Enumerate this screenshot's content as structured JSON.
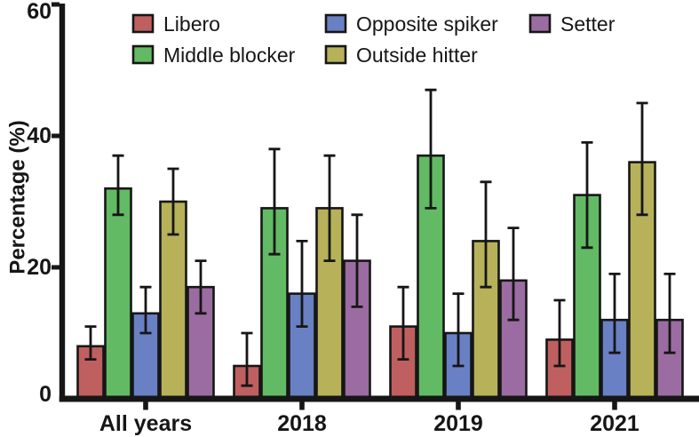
{
  "chart_data": {
    "type": "bar",
    "title": "",
    "xlabel": "",
    "ylabel": "Percentage (%)",
    "ylim": [
      0,
      60
    ],
    "yticks": [
      0,
      20,
      40,
      60
    ],
    "grid": false,
    "legend_position": "top",
    "categories": [
      "All years",
      "2018",
      "2019",
      "2021"
    ],
    "series": [
      {
        "name": "Libero",
        "color": "#c05f5f",
        "values": [
          8,
          5,
          11,
          9
        ],
        "err_low": [
          6,
          2,
          6,
          5
        ],
        "err_high": [
          11,
          10,
          17,
          15
        ]
      },
      {
        "name": "Middle blocker",
        "color": "#62ba64",
        "values": [
          32,
          29,
          37,
          31
        ],
        "err_low": [
          28,
          22,
          29,
          23
        ],
        "err_high": [
          37,
          38,
          47,
          39
        ]
      },
      {
        "name": "Opposite spiker",
        "color": "#6a80c4",
        "values": [
          13,
          16,
          10,
          12
        ],
        "err_low": [
          10,
          11,
          5,
          7
        ],
        "err_high": [
          17,
          24,
          16,
          19
        ]
      },
      {
        "name": "Outside hitter",
        "color": "#b7b25a",
        "values": [
          30,
          29,
          24,
          36
        ],
        "err_low": [
          25,
          21,
          17,
          28
        ],
        "err_high": [
          35,
          37,
          33,
          45
        ]
      },
      {
        "name": "Setter",
        "color": "#9b6ca1",
        "values": [
          17,
          21,
          18,
          12
        ],
        "err_low": [
          13,
          14,
          12,
          7
        ],
        "err_high": [
          21,
          28,
          26,
          19
        ]
      }
    ],
    "legend_layout": [
      {
        "series": 0,
        "row": 0,
        "col": 0
      },
      {
        "series": 2,
        "row": 0,
        "col": 1
      },
      {
        "series": 4,
        "row": 0,
        "col": 2
      },
      {
        "series": 1,
        "row": 1,
        "col": 0
      },
      {
        "series": 3,
        "row": 1,
        "col": 1
      }
    ],
    "ink_color": "#161616"
  }
}
